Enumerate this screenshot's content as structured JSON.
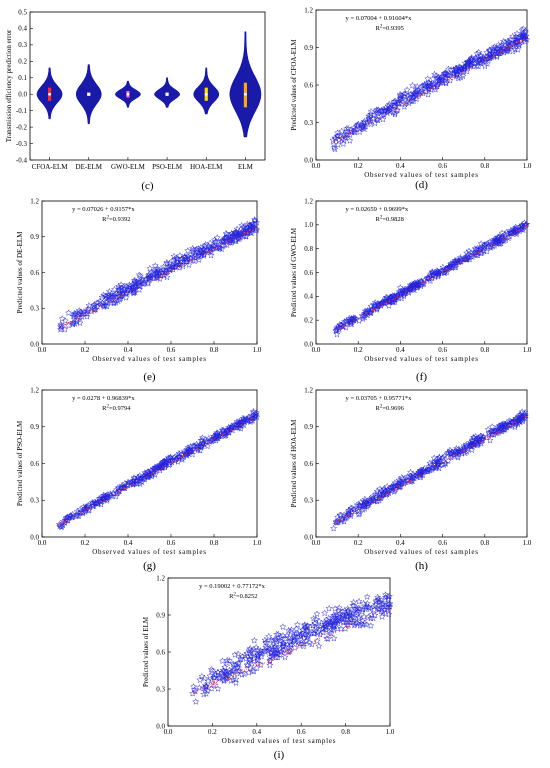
{
  "colors": {
    "star": "#2222dd",
    "fit_points": "#ff2020",
    "violin": "#1a1aa8",
    "violin_outline": "#0000cc",
    "violin_box": [
      "#ff2a2a",
      "#ffffff",
      "#ff66cc",
      "#ffffff",
      "#ffdd00",
      "#ffaa00"
    ],
    "axis": "#000000"
  },
  "chart_data": [
    {
      "panel": "(c)",
      "type": "violin",
      "ylabel": "Transmission efficiency prediction error",
      "categories": [
        "CFOA-ELM",
        "DE-ELM",
        "GWO-ELM",
        "PSO-ELM",
        "HOA-ELM",
        "ELM"
      ],
      "yticks": [
        "-0.4",
        "-0.3",
        "-0.2",
        "-0.1",
        "0.0",
        "0.1",
        "0.2",
        "0.3",
        "0.4",
        "0.5"
      ],
      "ylim": [
        -0.4,
        0.5
      ],
      "yticks_values": [
        -0.4,
        -0.3,
        -0.2,
        -0.1,
        0.0,
        0.1,
        0.2,
        0.3,
        0.4,
        0.5
      ],
      "range_min": [
        -0.15,
        -0.18,
        -0.08,
        -0.08,
        -0.12,
        -0.26
      ],
      "range_max": [
        0.16,
        0.18,
        0.08,
        0.1,
        0.16,
        0.38
      ],
      "median": [
        0.0,
        0.0,
        0.0,
        0.0,
        0.0,
        0.0
      ],
      "q1": [
        -0.04,
        -0.01,
        -0.02,
        -0.01,
        -0.04,
        -0.08
      ],
      "q3": [
        0.04,
        0.01,
        0.02,
        0.01,
        0.04,
        0.07
      ]
    },
    {
      "panel": "(d)",
      "type": "scatter",
      "model": "CFOA-ELM",
      "equation": "y = 0.07004 + 0.91604*x",
      "r2_prefix": "R",
      "r2_sup": "2",
      "r2_value": "=0.9395",
      "intercept": 0.07004,
      "slope": 0.91604,
      "r2": 0.9395,
      "xlabel": "Observed values of test samples",
      "ylabel": "Predicted values of CFOA-ELM",
      "xticks": [
        "0.0",
        "0.2",
        "0.4",
        "0.6",
        "0.8",
        "1.0"
      ],
      "yticks": [
        "0.0",
        "0.3",
        "0.6",
        "0.9",
        "1.2"
      ],
      "xticks_values": [
        0.0,
        0.2,
        0.4,
        0.6,
        0.8,
        1.0
      ],
      "yticks_values": [
        0.0,
        0.3,
        0.6,
        0.9,
        1.2
      ],
      "xlim": [
        0.0,
        1.0
      ],
      "ylim": [
        0.0,
        1.2
      ],
      "x_range": [
        0.08,
        1.0
      ],
      "spread": 0.06
    },
    {
      "panel": "(e)",
      "type": "scatter",
      "model": "DE-ELM",
      "equation": "y = 0.07026 + 0.9157*x",
      "r2_prefix": "R",
      "r2_sup": "2",
      "r2_value": "=0.9392",
      "intercept": 0.07026,
      "slope": 0.9157,
      "r2": 0.9392,
      "xlabel": "Observed values of test samples",
      "ylabel": "Predicted values of DE-ELM",
      "xticks": [
        "0.0",
        "0.2",
        "0.4",
        "0.6",
        "0.8",
        "1.0"
      ],
      "yticks": [
        "0.0",
        "0.3",
        "0.6",
        "0.9",
        "1.2"
      ],
      "xticks_values": [
        0.0,
        0.2,
        0.4,
        0.6,
        0.8,
        1.0
      ],
      "yticks_values": [
        0.0,
        0.3,
        0.6,
        0.9,
        1.2
      ],
      "xlim": [
        0.0,
        1.0
      ],
      "ylim": [
        0.0,
        1.2
      ],
      "x_range": [
        0.08,
        1.0
      ],
      "spread": 0.06
    },
    {
      "panel": "(f)",
      "type": "scatter",
      "model": "GWO-ELM",
      "equation": "y = 0.02659 + 0.9699*x",
      "r2_prefix": "R",
      "r2_sup": "2",
      "r2_value": "=0.9828",
      "intercept": 0.02659,
      "slope": 0.9699,
      "r2": 0.9828,
      "xlabel": "Observed values of test samples",
      "ylabel": "Predicted values of GWO-ELM",
      "xticks": [
        "0.0",
        "0.2",
        "0.4",
        "0.6",
        "0.8",
        "1.0"
      ],
      "yticks": [
        "0.0",
        "0.2",
        "0.4",
        "0.6",
        "0.8",
        "1.0",
        "1.2"
      ],
      "xticks_values": [
        0.0,
        0.2,
        0.4,
        0.6,
        0.8,
        1.0
      ],
      "yticks_values": [
        0.0,
        0.2,
        0.4,
        0.6,
        0.8,
        1.0,
        1.2
      ],
      "xlim": [
        0.0,
        1.0
      ],
      "ylim": [
        0.0,
        1.2
      ],
      "x_range": [
        0.08,
        1.0
      ],
      "spread": 0.035
    },
    {
      "panel": "(g)",
      "type": "scatter",
      "model": "PSO-ELM",
      "equation": "y = 0.0278 + 0.96839*x",
      "r2_prefix": "R",
      "r2_sup": "2",
      "r2_value": "=0.9794",
      "intercept": 0.0278,
      "slope": 0.96839,
      "r2": 0.9794,
      "xlabel": "Observed values of test samples",
      "ylabel": "Predicted values of PSO-ELM",
      "xticks": [
        "0.0",
        "0.2",
        "0.4",
        "0.6",
        "0.8",
        "1.0"
      ],
      "yticks": [
        "0.0",
        "0.3",
        "0.6",
        "0.9",
        "1.2"
      ],
      "xticks_values": [
        0.0,
        0.2,
        0.4,
        0.6,
        0.8,
        1.0
      ],
      "yticks_values": [
        0.0,
        0.3,
        0.6,
        0.9,
        1.2
      ],
      "xlim": [
        0.0,
        1.0
      ],
      "ylim": [
        0.0,
        1.2
      ],
      "x_range": [
        0.08,
        1.0
      ],
      "spread": 0.035
    },
    {
      "panel": "(h)",
      "type": "scatter",
      "model": "HOA-ELM",
      "equation": "y = 0.03705 + 0.95771*x",
      "r2_prefix": "R",
      "r2_sup": "2",
      "r2_value": "=0.9696",
      "intercept": 0.03705,
      "slope": 0.95771,
      "r2": 0.9696,
      "xlabel": "Observed values of test samples",
      "ylabel": "Predicted values of HOA-ELM",
      "xticks": [
        "0.0",
        "0.2",
        "0.4",
        "0.6",
        "0.8",
        "1.0"
      ],
      "yticks": [
        "0.0",
        "0.3",
        "0.6",
        "0.9",
        "1.2"
      ],
      "xticks_values": [
        0.0,
        0.2,
        0.4,
        0.6,
        0.8,
        1.0
      ],
      "yticks_values": [
        0.0,
        0.3,
        0.6,
        0.9,
        1.2
      ],
      "xlim": [
        0.0,
        1.0
      ],
      "ylim": [
        0.0,
        1.2
      ],
      "x_range": [
        0.08,
        1.0
      ],
      "spread": 0.045
    },
    {
      "panel": "(i)",
      "type": "scatter",
      "model": "ELM",
      "equation": "y = 0.19002 + 0.77172*x",
      "r2_prefix": "R",
      "r2_sup": "2",
      "r2_value": "=0.8252",
      "intercept": 0.19002,
      "slope": 0.77172,
      "r2": 0.8252,
      "xlabel": "Observed values of test samples",
      "ylabel": "Predicted values of ELM",
      "xticks": [
        "0.0",
        "0.2",
        "0.4",
        "0.6",
        "0.8",
        "1.0"
      ],
      "yticks": [
        "0.0",
        "0.3",
        "0.6",
        "0.9",
        "1.2"
      ],
      "xticks_values": [
        0.0,
        0.2,
        0.4,
        0.6,
        0.8,
        1.0
      ],
      "yticks_values": [
        0.0,
        0.3,
        0.6,
        0.9,
        1.2
      ],
      "xlim": [
        0.0,
        1.0
      ],
      "ylim": [
        0.0,
        1.2
      ],
      "x_range": [
        0.1,
        1.0
      ],
      "spread": 0.11
    }
  ]
}
